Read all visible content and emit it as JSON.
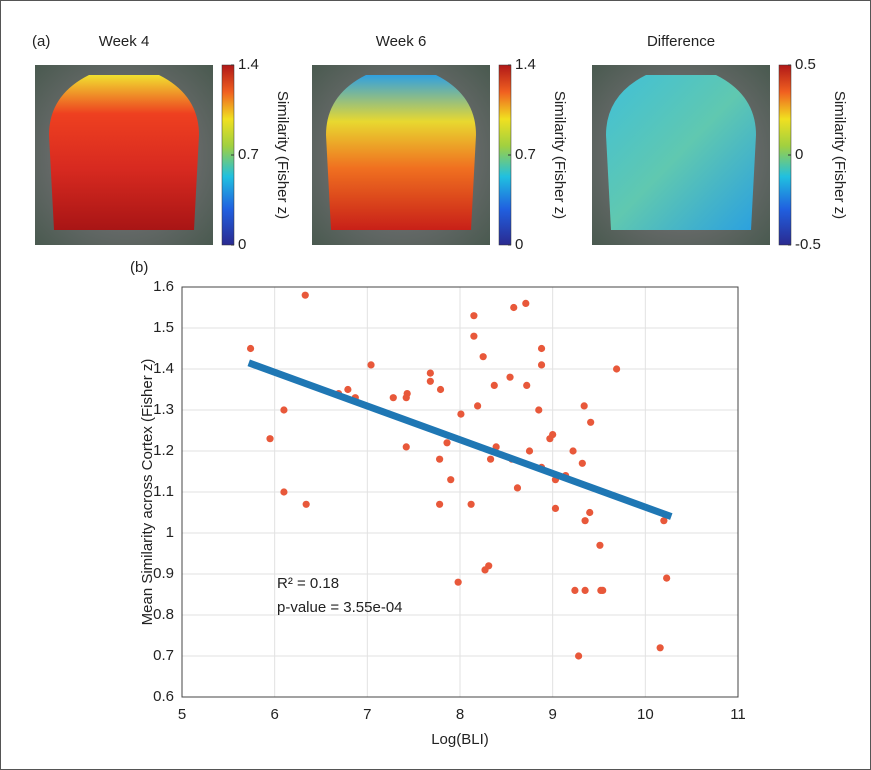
{
  "panel_labels": [
    "(a)",
    "(b)"
  ],
  "chart_data": [
    {
      "type": "heatmap",
      "title": "Week 4",
      "colorbar_label": "Similarity (Fisher z)",
      "clim": [
        0,
        1.4
      ],
      "cticks": [
        0,
        0.7,
        1.4
      ]
    },
    {
      "type": "heatmap",
      "title": "Week 6",
      "colorbar_label": "Similarity (Fisher z)",
      "clim": [
        0,
        1.4
      ],
      "cticks": [
        0,
        0.7,
        1.4
      ]
    },
    {
      "type": "heatmap",
      "title": "Difference",
      "colorbar_label": "Similarity (Fisher z)",
      "clim": [
        -0.5,
        0.5
      ],
      "cticks": [
        -0.5,
        0,
        0.5
      ]
    },
    {
      "type": "scatter",
      "xlabel": "Log(BLI)",
      "ylabel": "Mean Similarity across Cortex (Fisher z)",
      "xlim": [
        5,
        11
      ],
      "xticks": [
        5,
        6,
        7,
        8,
        9,
        10,
        11
      ],
      "ylim": [
        0.6,
        1.6
      ],
      "yticks": [
        0.6,
        0.7,
        0.8,
        0.9,
        1,
        1.1,
        1.2,
        1.3,
        1.4,
        1.5,
        1.6
      ],
      "grid": true,
      "color": "#e8583a",
      "line_color": "#1f77b4",
      "x": [
        5.74,
        5.95,
        6.1,
        6.1,
        6.33,
        6.34,
        6.69,
        6.79,
        6.87,
        7.04,
        7.28,
        7.42,
        7.43,
        7.42,
        7.68,
        7.68,
        7.79,
        7.78,
        7.78,
        7.86,
        7.9,
        7.98,
        8.01,
        8.12,
        8.15,
        8.15,
        8.19,
        8.25,
        8.27,
        8.31,
        8.33,
        8.37,
        8.39,
        8.54,
        8.56,
        8.58,
        8.62,
        8.71,
        8.72,
        8.75,
        8.85,
        8.88,
        8.88,
        8.88,
        8.97,
        9.0,
        9.03,
        9.03,
        9.14,
        9.22,
        9.24,
        9.28,
        9.32,
        9.34,
        9.35,
        9.35,
        9.4,
        9.41,
        9.51,
        9.52,
        9.54,
        9.69,
        10.16,
        10.2,
        10.23
      ],
      "values": [
        1.45,
        1.23,
        1.3,
        1.1,
        1.58,
        1.07,
        1.34,
        1.35,
        1.33,
        1.41,
        1.33,
        1.33,
        1.34,
        1.21,
        1.39,
        1.37,
        1.35,
        1.18,
        1.07,
        1.22,
        1.13,
        0.88,
        1.29,
        1.07,
        1.53,
        1.48,
        1.31,
        1.43,
        0.91,
        0.92,
        1.18,
        1.36,
        1.21,
        1.38,
        1.18,
        1.55,
        1.11,
        1.56,
        1.36,
        1.2,
        1.3,
        1.45,
        1.41,
        1.16,
        1.23,
        1.24,
        1.13,
        1.06,
        1.14,
        1.2,
        0.86,
        0.7,
        1.17,
        1.31,
        1.03,
        0.86,
        1.05,
        1.27,
        0.97,
        0.86,
        0.86,
        1.4,
        0.72,
        1.03,
        0.89
      ],
      "fit": {
        "x": [
          5.72,
          10.28
        ],
        "values": [
          1.415,
          1.04
        ]
      },
      "annotations": [
        "R² = 0.18",
        "p-value = 3.55e-04"
      ]
    }
  ]
}
